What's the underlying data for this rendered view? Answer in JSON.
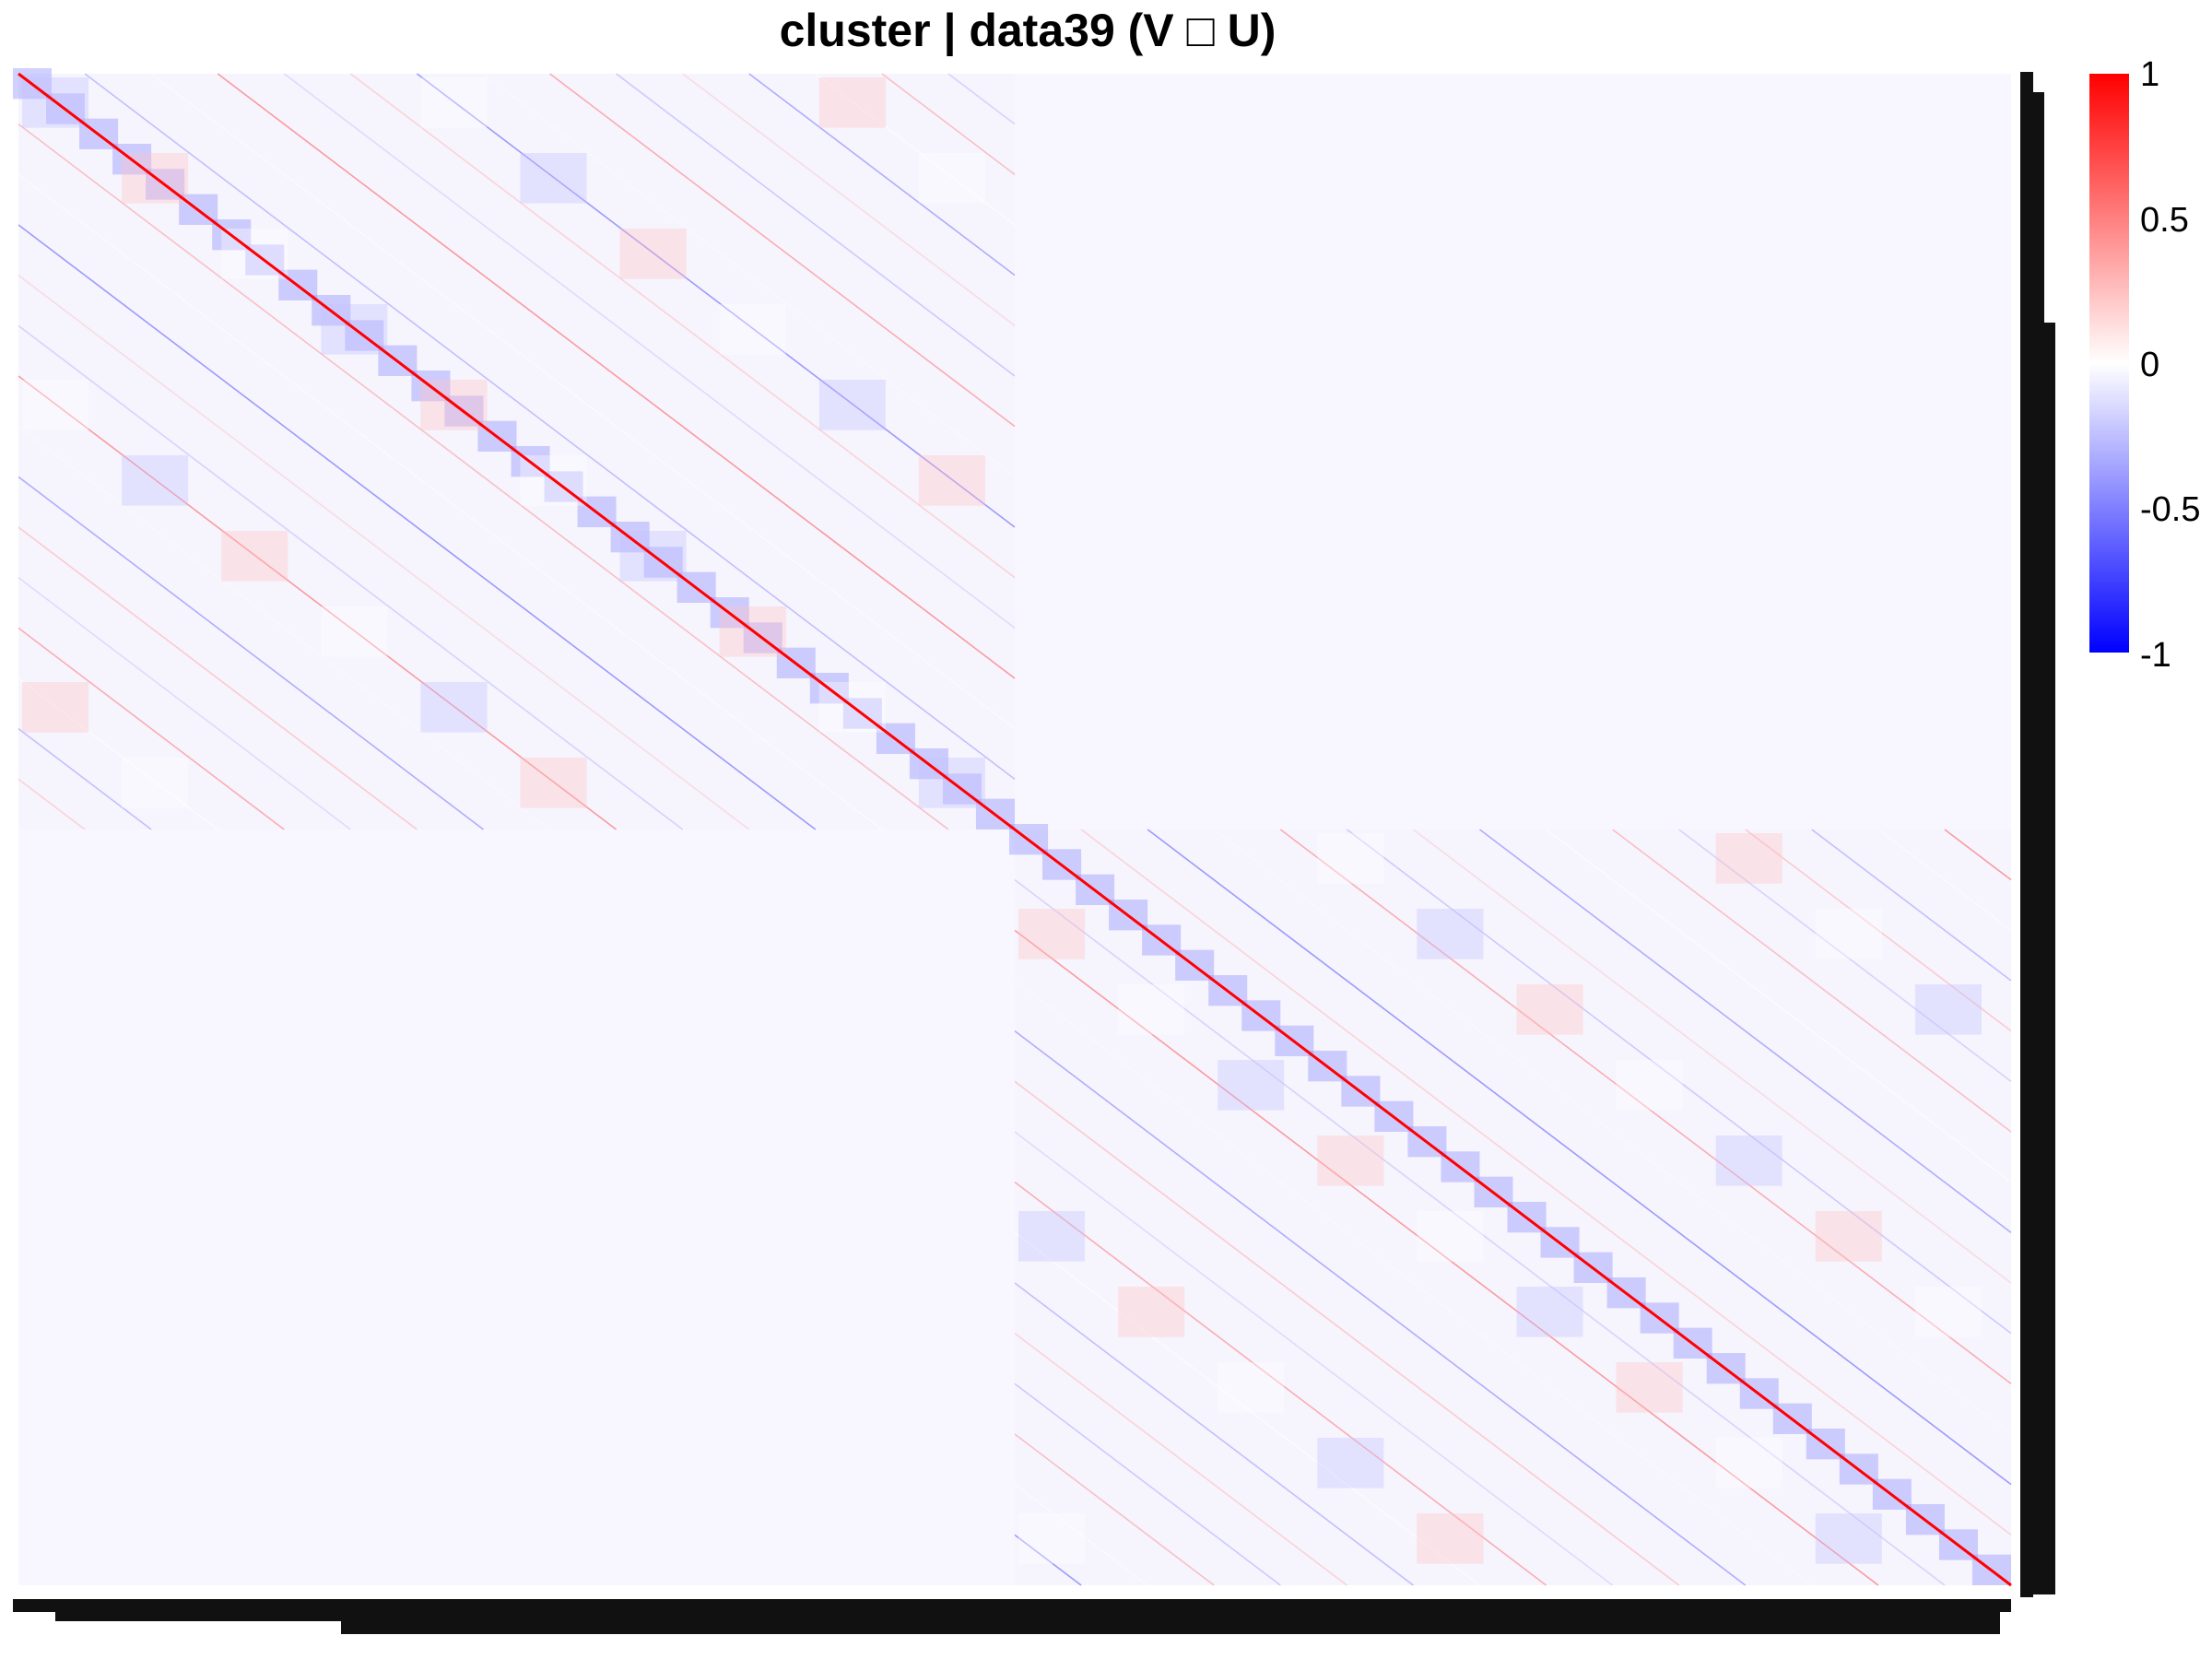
{
  "chart_data": {
    "type": "heatmap",
    "title": "cluster | data39 (V □ U)",
    "colorscale": {
      "min": -1,
      "max": 1,
      "colors": [
        "#0000ff",
        "#ffffff",
        "#ff0000"
      ],
      "tick_labels": [
        "1",
        "0.5",
        "0",
        "-0.5",
        "-1"
      ],
      "tick_values": [
        1,
        0.5,
        0,
        -0.5,
        -1
      ]
    },
    "blocks": [
      {
        "rows": [
          0,
          0.5
        ],
        "cols": [
          0,
          0.5
        ],
        "diagonal_value": 1,
        "off_diagonal_range": [
          -1,
          1
        ]
      },
      {
        "rows": [
          0.5,
          1
        ],
        "cols": [
          0.5,
          1
        ],
        "diagonal_value": 1,
        "off_diagonal_range": [
          -1,
          1
        ]
      }
    ],
    "background_value": 0,
    "legend_placement": "right",
    "grid": false
  }
}
